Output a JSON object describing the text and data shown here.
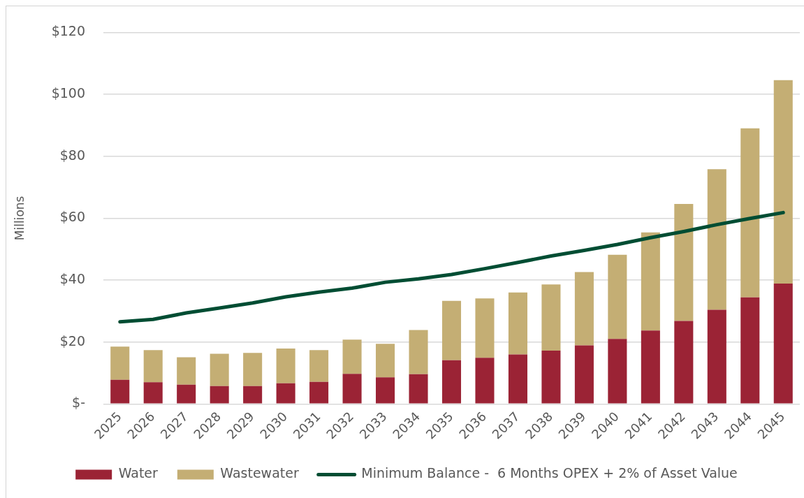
{
  "chart_data": {
    "type": "bar",
    "stacked": true,
    "categories": [
      "2025",
      "2026",
      "2027",
      "2028",
      "2029",
      "2030",
      "2031",
      "2032",
      "2033",
      "2034",
      "2035",
      "2036",
      "2037",
      "2038",
      "2039",
      "2040",
      "2041",
      "2042",
      "2043",
      "2044",
      "2045"
    ],
    "series": [
      {
        "name": "Water",
        "color": "#9b2335",
        "values": [
          7.8,
          7.0,
          6.2,
          5.8,
          5.8,
          6.7,
          7.1,
          9.7,
          8.6,
          9.6,
          14.1,
          14.9,
          16.0,
          17.2,
          18.9,
          21.0,
          23.7,
          26.8,
          30.4,
          34.4,
          38.9
        ]
      },
      {
        "name": "Wastewater",
        "color": "#c4ae74",
        "values": [
          10.7,
          10.4,
          8.9,
          10.4,
          10.7,
          11.2,
          10.3,
          11.1,
          10.8,
          14.3,
          19.2,
          19.2,
          20.0,
          21.4,
          23.7,
          27.2,
          31.7,
          37.8,
          45.4,
          54.6,
          65.7
        ]
      },
      {
        "name": "Minimum Balance -  6 Months OPEX + 2% of Asset Value",
        "type": "line",
        "color": "#004d33",
        "values": [
          26.5,
          27.3,
          29.4,
          31.0,
          32.6,
          34.6,
          36.1,
          37.4,
          39.3,
          40.4,
          41.8,
          43.7,
          45.7,
          47.8,
          49.6,
          51.5,
          53.7,
          55.7,
          57.9,
          59.9,
          61.8
        ]
      }
    ],
    "ylabel": "Millions",
    "ylim": [
      0,
      120
    ],
    "yticks": [
      {
        "value": 0,
        "label": "$-"
      },
      {
        "value": 20,
        "label": "$20"
      },
      {
        "value": 40,
        "label": "$40"
      },
      {
        "value": 60,
        "label": "$60"
      },
      {
        "value": 80,
        "label": "$80"
      },
      {
        "value": 100,
        "label": "$100"
      },
      {
        "value": 120,
        "label": "$120"
      }
    ],
    "grid": "y",
    "legend": "bottom",
    "marker": "none",
    "line_style": "solid"
  }
}
